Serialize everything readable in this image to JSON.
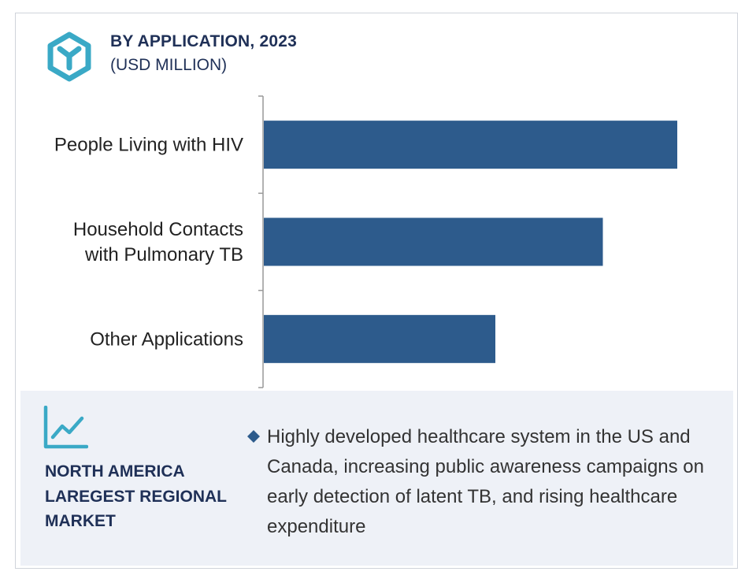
{
  "header": {
    "title": "BY APPLICATION, 2023",
    "subtitle": "(USD MILLION)",
    "logo_icon": "hexagon-y-icon"
  },
  "colors": {
    "bar": "#2d5b8c",
    "logo": "#3aa9c6",
    "heading": "#1f3057",
    "panel": "#eef1f7",
    "axis": "#999999"
  },
  "chart_data": {
    "type": "bar",
    "orientation": "horizontal",
    "categories": [
      [
        "People Living with HIV"
      ],
      [
        "Household Contacts",
        "with Pulmonary TB"
      ],
      [
        "Other Applications"
      ]
    ],
    "values": [
      100,
      82,
      56
    ],
    "xlim": [
      0,
      100
    ],
    "title": "BY APPLICATION, 2023",
    "subtitle": "(USD MILLION)",
    "xlabel": "",
    "ylabel": "",
    "grid": false,
    "legend": "none"
  },
  "footer": {
    "icon": "trend-line-icon",
    "region_label": "NORTH AMERICA LAREGEST REGIONAL MARKET",
    "bullet_icon": "diamond-bullet-icon",
    "bullet_text": "Highly developed healthcare system in the US and Canada, increasing public awareness campaigns on early detection of latent TB, and rising healthcare expenditure"
  }
}
